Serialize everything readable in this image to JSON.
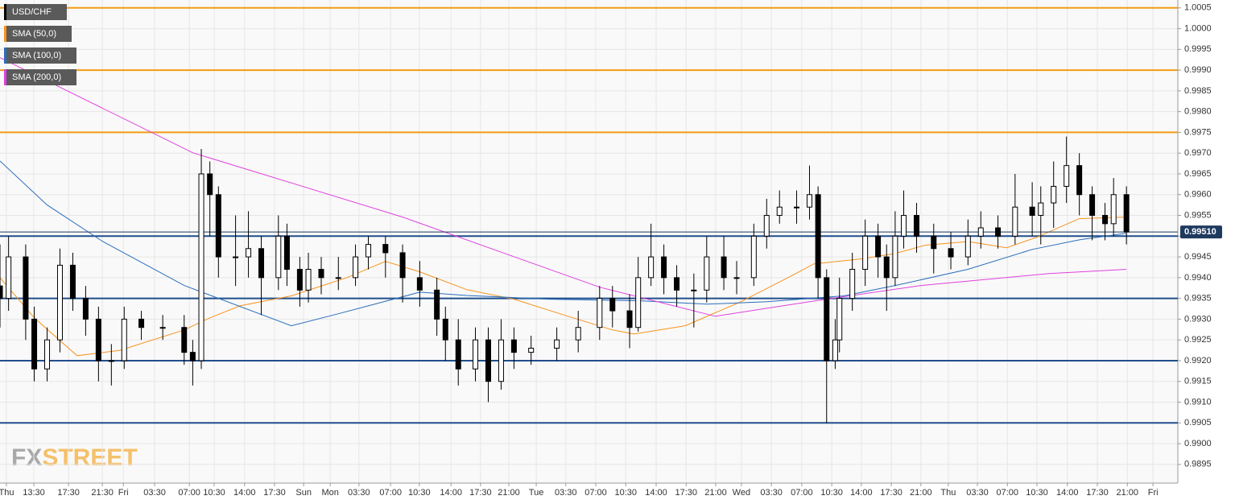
{
  "chart_data": {
    "type": "candlestick",
    "name": "USD/CHF",
    "up_color": "#ffffff",
    "down_color": "#000000",
    "x": [
      0,
      2,
      6,
      8,
      11,
      14,
      17,
      20,
      23,
      26,
      29,
      33,
      38,
      43,
      45,
      47,
      49,
      51,
      55,
      58,
      61,
      65,
      67,
      70,
      72,
      75,
      79,
      83,
      86,
      90,
      94,
      98,
      102,
      104,
      107,
      111,
      114,
      117,
      120,
      124,
      130,
      135,
      140,
      143,
      147,
      149,
      152,
      155,
      158,
      162,
      165,
      169,
      172,
      176,
      179,
      182,
      186,
      189,
      191,
      193,
      195,
      196,
      199,
      202,
      205,
      207,
      209,
      211,
      214,
      218,
      222,
      226,
      229,
      233,
      237,
      241,
      243,
      246,
      249,
      252,
      255,
      258,
      260,
      263
    ],
    "open": [
      0.9938,
      0.9935,
      0.9945,
      0.993,
      0.9918,
      0.9925,
      0.9943,
      0.9935,
      0.993,
      0.992,
      0.992,
      0.993,
      0.9928,
      0.9928,
      0.9922,
      0.992,
      0.9965,
      0.996,
      0.9945,
      0.9945,
      0.9947,
      0.994,
      0.995,
      0.9942,
      0.9937,
      0.9942,
      0.994,
      0.994,
      0.9945,
      0.9948,
      0.9946,
      0.994,
      0.9937,
      0.993,
      0.9925,
      0.9918,
      0.9925,
      0.9915,
      0.9925,
      0.9922,
      0.9923,
      0.9925,
      0.9928,
      0.9935,
      0.9932,
      0.9928,
      0.994,
      0.9945,
      0.994,
      0.9937,
      0.9937,
      0.9945,
      0.994,
      0.994,
      0.995,
      0.9955,
      0.9957,
      0.9957,
      0.996,
      0.994,
      0.992,
      0.9925,
      0.9935,
      0.9942,
      0.995,
      0.9945,
      0.994,
      0.995,
      0.9955,
      0.995,
      0.9947,
      0.9945,
      0.995,
      0.9952,
      0.995,
      0.9957,
      0.9955,
      0.9958,
      0.9962,
      0.9967,
      0.996,
      0.9955,
      0.9953,
      0.996
    ],
    "high": [
      0.9948,
      0.995,
      0.9948,
      0.9933,
      0.9928,
      0.9947,
      0.9946,
      0.9938,
      0.9933,
      0.9924,
      0.9933,
      0.9932,
      0.9931,
      0.9931,
      0.9925,
      0.9971,
      0.9968,
      0.9962,
      0.9955,
      0.9956,
      0.995,
      0.9955,
      0.9953,
      0.9945,
      0.9946,
      0.9945,
      0.9945,
      0.9948,
      0.995,
      0.995,
      0.9948,
      0.9944,
      0.994,
      0.9933,
      0.993,
      0.9928,
      0.9928,
      0.993,
      0.9928,
      0.9926,
      0.9928,
      0.9932,
      0.9938,
      0.9938,
      0.9936,
      0.9945,
      0.9953,
      0.9948,
      0.9943,
      0.9941,
      0.995,
      0.995,
      0.9944,
      0.9953,
      0.9959,
      0.9961,
      0.9961,
      0.9967,
      0.9962,
      0.9942,
      0.993,
      0.994,
      0.9946,
      0.9954,
      0.9953,
      0.9948,
      0.9956,
      0.9961,
      0.9958,
      0.9953,
      0.9951,
      0.9954,
      0.9956,
      0.9955,
      0.9965,
      0.9963,
      0.9962,
      0.9968,
      0.9974,
      0.997,
      0.9962,
      0.9958,
      0.9964,
      0.9962
    ],
    "low": [
      0.9928,
      0.9932,
      0.9925,
      0.9915,
      0.9915,
      0.9922,
      0.9932,
      0.9926,
      0.9915,
      0.9914,
      0.9918,
      0.9925,
      0.9925,
      0.9919,
      0.9914,
      0.9918,
      0.995,
      0.994,
      0.9938,
      0.994,
      0.9931,
      0.9937,
      0.9938,
      0.9933,
      0.9934,
      0.9936,
      0.9937,
      0.9938,
      0.9942,
      0.994,
      0.9934,
      0.9933,
      0.9926,
      0.992,
      0.9914,
      0.9915,
      0.991,
      0.9913,
      0.9918,
      0.9919,
      0.992,
      0.9922,
      0.9925,
      0.9928,
      0.9923,
      0.9927,
      0.9938,
      0.9936,
      0.9933,
      0.9928,
      0.9934,
      0.9937,
      0.9936,
      0.9938,
      0.9947,
      0.9953,
      0.9953,
      0.9954,
      0.9935,
      0.9905,
      0.9918,
      0.9922,
      0.9932,
      0.9938,
      0.994,
      0.9932,
      0.9938,
      0.9947,
      0.9946,
      0.9941,
      0.9942,
      0.9943,
      0.9947,
      0.9947,
      0.9948,
      0.995,
      0.9948,
      0.9952,
      0.9958,
      0.9955,
      0.9949,
      0.9949,
      0.995,
      0.9948
    ],
    "close": [
      0.9935,
      0.9945,
      0.993,
      0.9918,
      0.9925,
      0.9943,
      0.9935,
      0.993,
      0.992,
      0.992,
      0.993,
      0.9928,
      0.9928,
      0.9922,
      0.992,
      0.9965,
      0.996,
      0.9945,
      0.9945,
      0.9947,
      0.994,
      0.995,
      0.9942,
      0.9937,
      0.9942,
      0.994,
      0.994,
      0.9945,
      0.9948,
      0.9946,
      0.994,
      0.9937,
      0.993,
      0.9925,
      0.9918,
      0.9925,
      0.9915,
      0.9925,
      0.9922,
      0.9923,
      0.9925,
      0.9928,
      0.9935,
      0.9932,
      0.9928,
      0.994,
      0.9945,
      0.994,
      0.9937,
      0.9937,
      0.9945,
      0.994,
      0.994,
      0.995,
      0.9955,
      0.9957,
      0.9957,
      0.996,
      0.994,
      0.992,
      0.9925,
      0.9935,
      0.9942,
      0.995,
      0.9945,
      0.994,
      0.995,
      0.9955,
      0.995,
      0.9947,
      0.9945,
      0.995,
      0.9952,
      0.995,
      0.9957,
      0.9955,
      0.9958,
      0.9962,
      0.9967,
      0.996,
      0.9955,
      0.9953,
      0.996,
      0.9951
    ],
    "overlays": [
      {
        "name": "SMA (50,0)",
        "color": "#f7931e",
        "x": [
          0,
          8,
          18,
          28,
          43,
          49,
          56,
          68,
          81,
          90,
          98,
          109,
          120,
          132,
          143,
          148,
          160,
          173,
          184,
          190,
          201,
          209,
          216,
          226,
          235,
          242,
          252,
          263
        ],
        "values": [
          0.994,
          0.99303,
          0.99212,
          0.99225,
          0.99274,
          0.99303,
          0.99332,
          0.99356,
          0.994,
          0.99439,
          0.99414,
          0.99371,
          0.99348,
          0.99309,
          0.99274,
          0.99264,
          0.99284,
          0.99342,
          0.994,
          0.99433,
          0.99445,
          0.99458,
          0.99478,
          0.99487,
          0.99472,
          0.99497,
          0.99542,
          0.99546
        ]
      },
      {
        "name": "SMA (100,0)",
        "color": "#2a6ebb",
        "x": [
          0,
          11,
          24,
          43,
          68,
          79,
          98,
          109,
          128,
          150,
          165,
          179,
          197,
          209,
          226,
          241,
          252,
          263
        ],
        "values": [
          0.99681,
          0.99575,
          0.99487,
          0.99381,
          0.99284,
          0.99313,
          0.99365,
          0.99357,
          0.99348,
          0.99344,
          0.99336,
          0.99342,
          0.99356,
          0.99381,
          0.9942,
          0.99468,
          0.99491,
          0.99507
        ]
      },
      {
        "name": "SMA (200,0)",
        "color": "#e040e0",
        "x": [
          0,
          45,
          94,
          140,
          167,
          189,
          215,
          245,
          263
        ],
        "values": [
          0.9993,
          0.99701,
          0.99546,
          0.99377,
          0.99307,
          0.99342,
          0.99381,
          0.9941,
          0.9942
        ]
      }
    ],
    "levels": [
      {
        "value": 1.0005,
        "color": "#f39c12"
      },
      {
        "value": 0.999,
        "color": "#f39c12"
      },
      {
        "value": 0.9975,
        "color": "#f39c12"
      },
      {
        "value": 0.995,
        "color": "#1f4e8c"
      },
      {
        "value": 0.9935,
        "color": "#1f4e8c"
      },
      {
        "value": 0.992,
        "color": "#1f4e8c"
      },
      {
        "value": 0.9905,
        "color": "#1f4e8c"
      }
    ],
    "last_price": {
      "value": 0.9951,
      "label": "0.99510"
    },
    "xlim": [
      0,
      275
    ],
    "ylim": [
      0.98905,
      1.00069
    ],
    "xticks": [
      {
        "value": 1.5,
        "label": "Thu"
      },
      {
        "value": 7.9,
        "label": "13:30"
      },
      {
        "value": 16,
        "label": "17:30"
      },
      {
        "value": 23.9,
        "label": "21:30"
      },
      {
        "value": 28.8,
        "label": "Fri"
      },
      {
        "value": 36.1,
        "label": "03:30"
      },
      {
        "value": 44.2,
        "label": "07:00"
      },
      {
        "value": 50,
        "label": "10:30"
      },
      {
        "value": 57.1,
        "label": "14:00"
      },
      {
        "value": 64.1,
        "label": "17:30"
      },
      {
        "value": 70.9,
        "label": "Sun"
      },
      {
        "value": 77.1,
        "label": "Mon"
      },
      {
        "value": 83.8,
        "label": "03:30"
      },
      {
        "value": 91.2,
        "label": "07:00"
      },
      {
        "value": 97.9,
        "label": "10:30"
      },
      {
        "value": 105.3,
        "label": "14:00"
      },
      {
        "value": 112.2,
        "label": "17:30"
      },
      {
        "value": 118.8,
        "label": "21:00"
      },
      {
        "value": 125.2,
        "label": "Tue"
      },
      {
        "value": 132.1,
        "label": "03:30"
      },
      {
        "value": 139.1,
        "label": "07:00"
      },
      {
        "value": 146.1,
        "label": "10:30"
      },
      {
        "value": 153.2,
        "label": "14:00"
      },
      {
        "value": 160.2,
        "label": "17:30"
      },
      {
        "value": 167.1,
        "label": "21:00"
      },
      {
        "value": 173.1,
        "label": "Wed"
      },
      {
        "value": 180.1,
        "label": "03:30"
      },
      {
        "value": 187.2,
        "label": "07:00"
      },
      {
        "value": 194.2,
        "label": "10:30"
      },
      {
        "value": 201.1,
        "label": "14:00"
      },
      {
        "value": 208.1,
        "label": "17:30"
      },
      {
        "value": 215,
        "label": "21:00"
      },
      {
        "value": 221.4,
        "label": "Thu"
      },
      {
        "value": 228.2,
        "label": "03:30"
      },
      {
        "value": 235.2,
        "label": "07:00"
      },
      {
        "value": 242.1,
        "label": "10:30"
      },
      {
        "value": 249.2,
        "label": "14:00"
      },
      {
        "value": 256.2,
        "label": "17:30"
      },
      {
        "value": 263.2,
        "label": "21:00"
      },
      {
        "value": 269.2,
        "label": "Fri"
      }
    ],
    "yticks": [
      0.9895,
      {
        "value": 0.99,
        "label": "0.9900"
      },
      0.9905,
      {
        "value": 0.991,
        "label": "0.9910"
      },
      0.9915,
      {
        "value": 0.992,
        "label": "0.9920"
      },
      0.9925,
      {
        "value": 0.993,
        "label": "0.9930"
      },
      0.9935,
      {
        "value": 0.994,
        "label": "0.9940"
      },
      0.9945,
      {
        "value": 0.995,
        "label": "0.9950"
      },
      0.9955,
      {
        "value": 0.996,
        "label": "0.9960"
      },
      0.9965,
      {
        "value": 0.997,
        "label": "0.9970"
      },
      0.9975,
      {
        "value": 0.998,
        "label": "0.9980"
      },
      0.9985,
      {
        "value": 0.999,
        "label": "0.9990"
      },
      0.9995,
      {
        "value": 1,
        "label": "1.0000"
      },
      1.0005
    ],
    "grid": true,
    "watermark": [
      "FX",
      "STREET"
    ]
  }
}
